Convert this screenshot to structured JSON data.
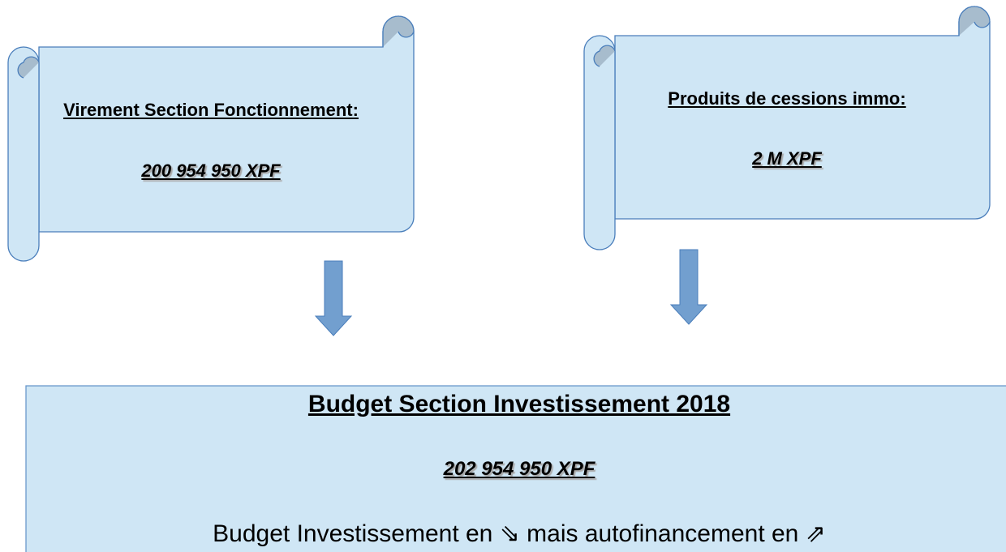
{
  "scrolls": [
    {
      "title": "Virement Section Fonctionnement:",
      "amount": "200 954 950 XPF"
    },
    {
      "title": "Produits de cessions immo:",
      "amount": "2 M XPF"
    }
  ],
  "budget": {
    "title": "Budget Section Investissement 2018",
    "amount": "202 954 950 XPF",
    "note": "Budget Investissement en ⇘ mais autofinancement en ⇗"
  }
}
